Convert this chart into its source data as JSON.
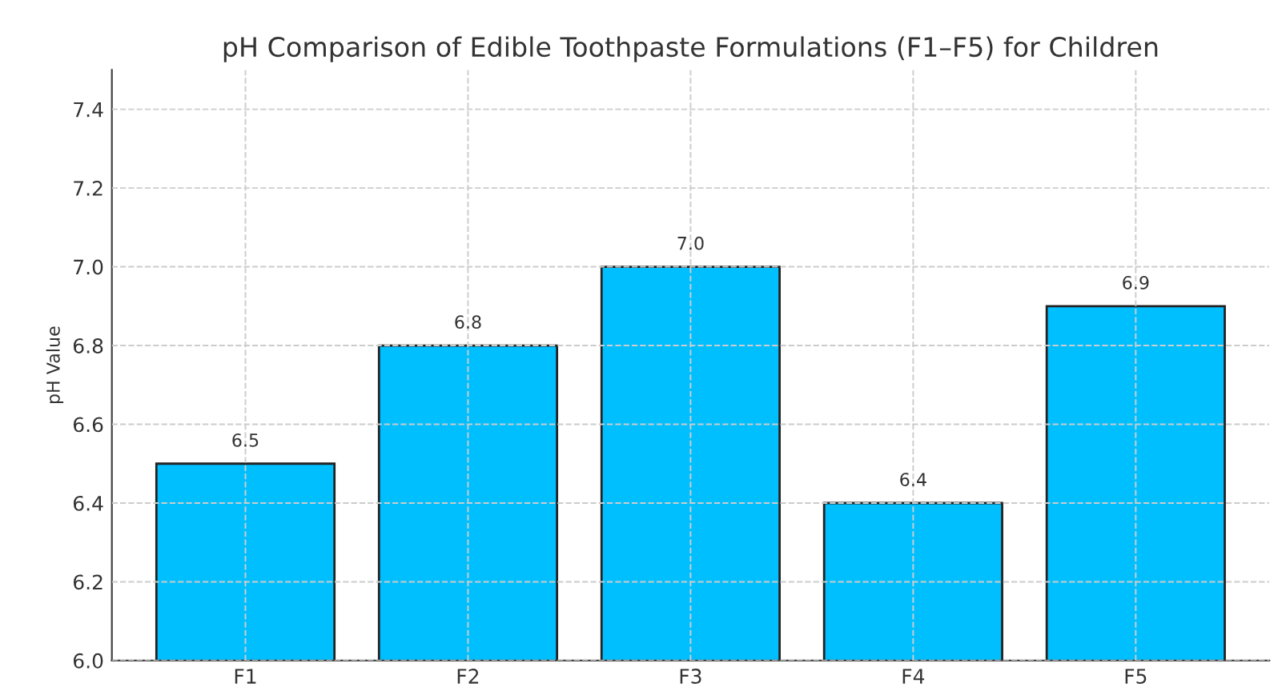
{
  "chart_data": {
    "type": "bar",
    "title": "pH Comparison of Edible Toothpaste Formulations (F1–F5) for Children",
    "ylabel": "pH Value",
    "categories": [
      "F1",
      "F2",
      "F3",
      "F4",
      "F5"
    ],
    "values": [
      6.5,
      6.8,
      7.0,
      6.4,
      6.9
    ],
    "value_labels": [
      "6.5",
      "6.8",
      "7.0",
      "6.4",
      "6.9"
    ],
    "color": "#00bfff",
    "ylim": [
      6.0,
      7.5
    ],
    "yticks": [
      "6.0",
      "6.2",
      "6.4",
      "6.6",
      "6.8",
      "7.0",
      "7.2",
      "7.4"
    ],
    "grid": true
  }
}
